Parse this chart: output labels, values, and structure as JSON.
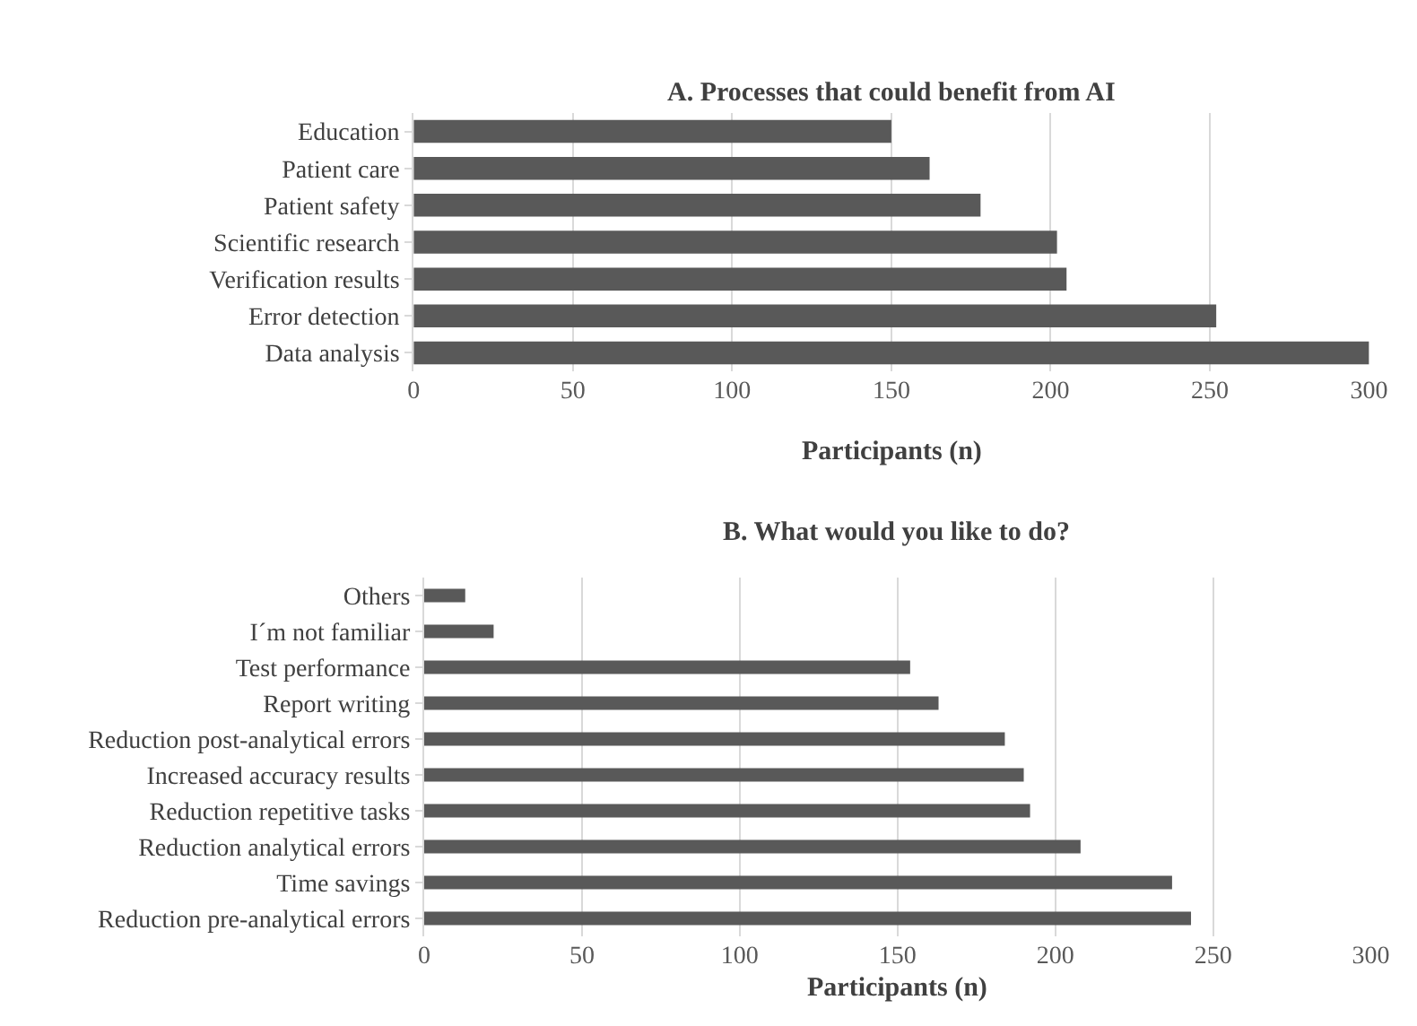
{
  "chart_data": [
    {
      "type": "bar",
      "orientation": "horizontal",
      "title": "A. Processes that could benefit from AI",
      "xlabel": "Participants (n)",
      "categories": [
        "Education",
        "Patient care",
        "Patient safety",
        "Scientific research",
        "Verification results",
        "Error detection",
        "Data analysis"
      ],
      "values": [
        150,
        162,
        178,
        202,
        205,
        252,
        300
      ],
      "color": "#595959",
      "xlim": [
        0,
        300
      ],
      "xticks": [
        0,
        50,
        100,
        150,
        200,
        250,
        300
      ],
      "grid": "x",
      "legend": false
    },
    {
      "type": "bar",
      "orientation": "horizontal",
      "title": "B. What would you like to do?",
      "xlabel": "Participants (n)",
      "categories": [
        "Others",
        "I´m not familiar",
        "Test performance",
        "Report writing",
        "Reduction post-analytical errors",
        "Increased accuracy results",
        "Reduction repetitive tasks",
        "Reduction analytical errors",
        "Time savings",
        "Reduction pre-analytical errors"
      ],
      "values": [
        13,
        22,
        154,
        163,
        184,
        190,
        192,
        208,
        237,
        243
      ],
      "color": "#595959",
      "xlim": [
        0,
        300
      ],
      "xticks": [
        0,
        50,
        100,
        150,
        200,
        250,
        300
      ],
      "grid": "x",
      "legend": false
    }
  ]
}
